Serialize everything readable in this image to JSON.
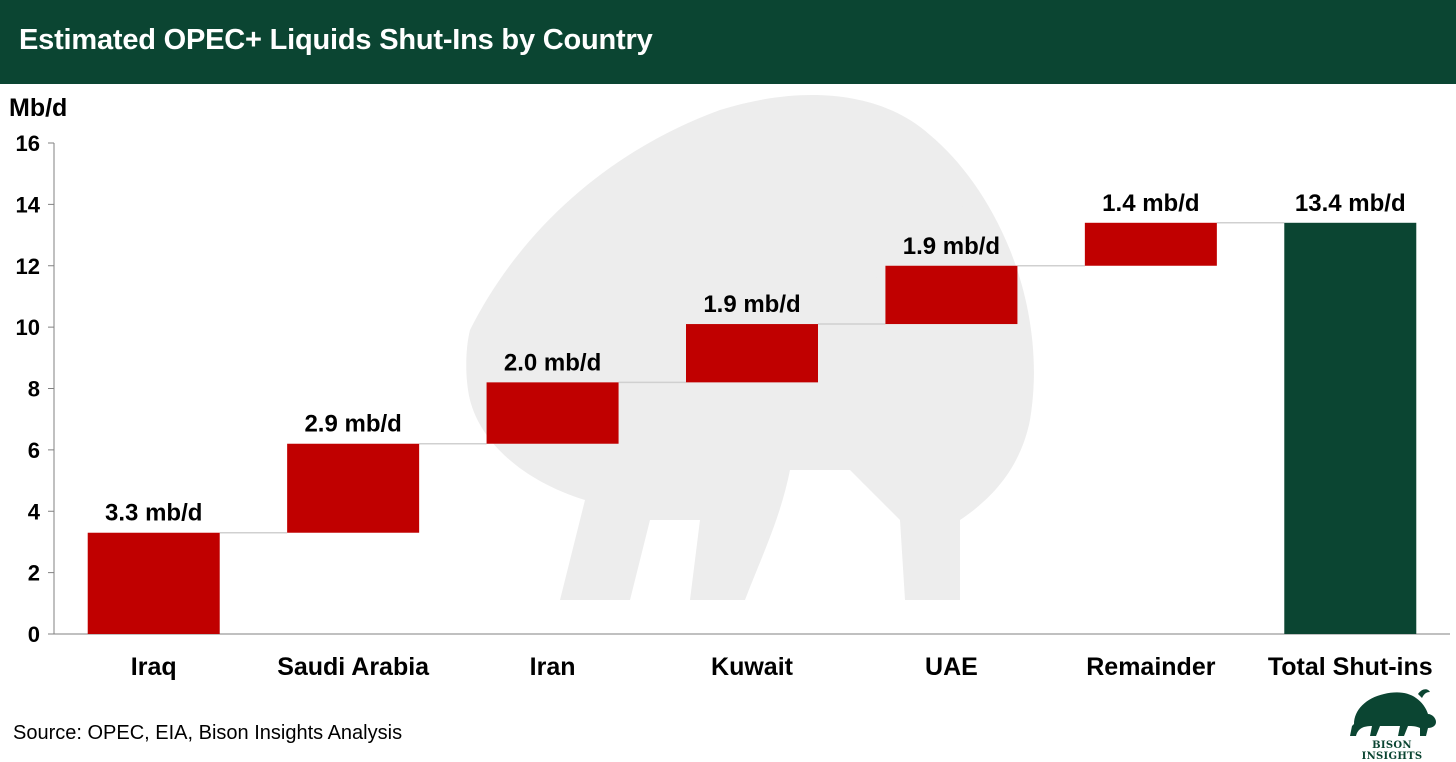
{
  "header": {
    "title": "Estimated OPEC+ Liquids Shut-Ins by Country"
  },
  "chart_data": {
    "type": "bar",
    "subtype": "waterfall",
    "title": "Estimated OPEC+ Liquids Shut-Ins by Country",
    "ylabel": "Mb/d",
    "ylim": [
      0,
      16
    ],
    "yticks": [
      0,
      2,
      4,
      6,
      8,
      10,
      12,
      14,
      16
    ],
    "categories": [
      "Iraq",
      "Saudi Arabia",
      "Iran",
      "Kuwait",
      "UAE",
      "Remainder",
      "Total Shut-ins"
    ],
    "values": [
      3.3,
      2.9,
      2.0,
      1.9,
      1.9,
      1.4,
      13.4
    ],
    "data_labels": [
      "3.3 mb/d",
      "2.9 mb/d",
      "2.0 mb/d",
      "1.9 mb/d",
      "1.9 mb/d",
      "1.4 mb/d",
      "13.4 mb/d"
    ],
    "is_total": [
      false,
      false,
      false,
      false,
      false,
      false,
      true
    ],
    "grid": false,
    "colors": {
      "increment": "#c00000",
      "total": "#0b4532",
      "connector": "#d0d0d0"
    }
  },
  "footer": {
    "source": "Source: OPEC, EIA, Bison Insights Analysis"
  },
  "logo": {
    "text": "BISON INSIGHTS",
    "icon": "bison-icon",
    "color": "#0b4532"
  },
  "watermark": {
    "icon": "bison-watermark-icon",
    "color": "#ededed"
  }
}
